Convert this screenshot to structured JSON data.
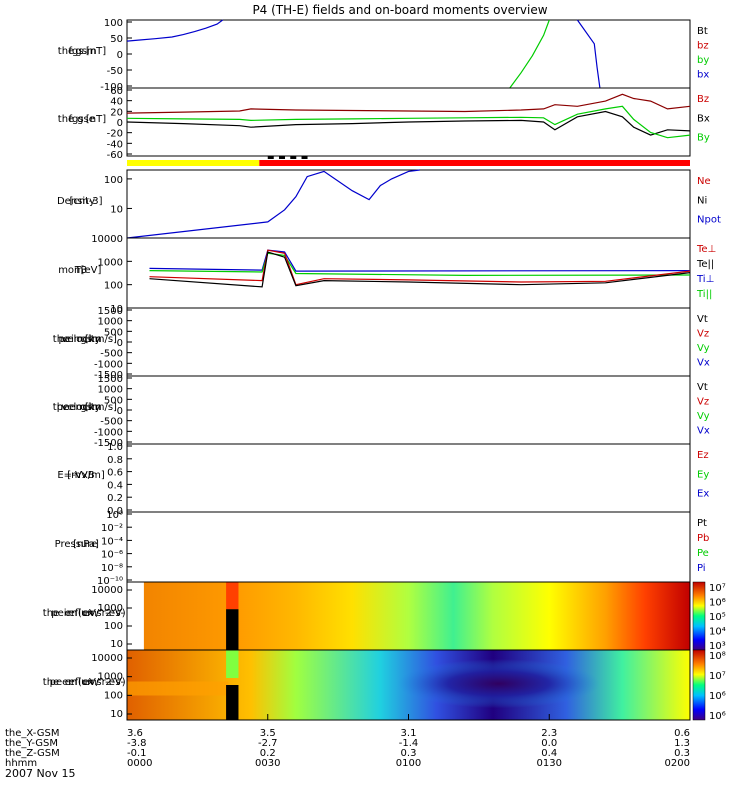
{
  "title": "P4 (TH-E) fields and on-board moments overview",
  "date_label": "2007 Nov 15",
  "colors": {
    "axis": "#000000",
    "blue": "#0000cc",
    "red": "#cc0000",
    "green": "#00cc00",
    "black": "#000000",
    "dark_red": "#8b0000",
    "mode_yellow": "#ffff00",
    "mode_red": "#ff0000"
  },
  "chart_data": [
    {
      "id": "fgs-gsm",
      "type": "line",
      "ylabel": [
        "the",
        "fgs",
        "gsm",
        "[nT]"
      ],
      "ylim": [
        -100,
        100
      ],
      "yticks": [
        "100",
        "50",
        "0",
        "-50",
        "-100"
      ],
      "legend": [
        {
          "label": "Bt",
          "color": "#000000"
        },
        {
          "label": "bz",
          "color": "#cc0000"
        },
        {
          "label": "by",
          "color": "#00cc00"
        },
        {
          "label": "bx",
          "color": "#0000cc"
        }
      ],
      "series": [
        {
          "name": "bx",
          "color": "#0000cc",
          "x": [
            0,
            0.02,
            0.05,
            0.08,
            0.1,
            0.12,
            0.14,
            0.16,
            0.17,
            0.5,
            0.8,
            0.83,
            0.835,
            0.84
          ],
          "y": [
            38,
            41,
            45,
            50,
            57,
            66,
            76,
            88,
            100,
            null,
            100,
            30,
            -40,
            -100
          ]
        },
        {
          "name": "by",
          "color": "#00cc00",
          "x": [
            0.68,
            0.7,
            0.72,
            0.74,
            0.75
          ],
          "y": [
            -100,
            -55,
            -5,
            55,
            100
          ]
        }
      ]
    },
    {
      "id": "fgs-gse",
      "type": "line",
      "ylabel": [
        "the",
        "fgs",
        "gse",
        "[nT]"
      ],
      "ylim": [
        -70,
        60
      ],
      "yticks": [
        "60",
        "40",
        "20",
        "0",
        "-20",
        "-40",
        "-60"
      ],
      "legend": [
        {
          "label": "Bz",
          "color": "#cc0000"
        },
        {
          "label": "Bx",
          "color": "#000000"
        },
        {
          "label": "By",
          "color": "#00cc00"
        }
      ],
      "series": [
        {
          "name": "Bz",
          "color": "#8b0000",
          "x": [
            0,
            0.1,
            0.2,
            0.22,
            0.3,
            0.4,
            0.5,
            0.6,
            0.7,
            0.74,
            0.76,
            0.8,
            0.85,
            0.88,
            0.9,
            0.93,
            0.96,
            1.0
          ],
          "y": [
            12,
            14,
            16,
            20,
            18,
            17,
            16,
            15,
            18,
            20,
            28,
            25,
            35,
            48,
            40,
            35,
            20,
            25
          ]
        },
        {
          "name": "Bx",
          "color": "#000000",
          "x": [
            0,
            0.1,
            0.2,
            0.22,
            0.3,
            0.4,
            0.5,
            0.6,
            0.7,
            0.74,
            0.76,
            0.8,
            0.85,
            0.88,
            0.9,
            0.93,
            0.96,
            1.0
          ],
          "y": [
            -5,
            -8,
            -12,
            -15,
            -10,
            -8,
            -5,
            -3,
            -2,
            -5,
            -20,
            5,
            15,
            5,
            -15,
            -30,
            -20,
            -22
          ]
        },
        {
          "name": "By",
          "color": "#00cc00",
          "x": [
            0,
            0.1,
            0.2,
            0.22,
            0.3,
            0.4,
            0.5,
            0.6,
            0.7,
            0.74,
            0.76,
            0.8,
            0.85,
            0.88,
            0.9,
            0.93,
            0.96,
            1.0
          ],
          "y": [
            2,
            1,
            0,
            -2,
            0,
            1,
            2,
            3,
            4,
            3,
            -10,
            10,
            20,
            25,
            0,
            -25,
            -35,
            -30
          ]
        }
      ]
    },
    {
      "id": "mode-bar",
      "type": "bar",
      "segments": [
        {
          "from": 0,
          "to": 0.235,
          "color": "#ffff00"
        },
        {
          "from": 0.235,
          "to": 1.0,
          "color": "#ff0000"
        }
      ]
    },
    {
      "id": "density",
      "type": "line",
      "ylabel": [
        "Density",
        "[cm-3]"
      ],
      "log": true,
      "ylim": [
        1,
        200
      ],
      "yticks": [
        "100",
        "10"
      ],
      "ytick_values": [
        100,
        10
      ],
      "legend": [
        {
          "label": "Ne",
          "color": "#cc0000"
        },
        {
          "label": "Ni",
          "color": "#000000"
        },
        {
          "label": "Npot",
          "color": "#0000cc"
        }
      ],
      "series": [
        {
          "name": "Npot",
          "color": "#0000cc",
          "x": [
            0,
            0.25,
            0.28,
            0.3,
            0.32,
            0.35,
            0.4,
            0.43,
            0.45,
            0.47,
            0.5,
            0.52
          ],
          "y": [
            1,
            3.5,
            9,
            25,
            120,
            180,
            40,
            20,
            60,
            100,
            180,
            220
          ]
        }
      ]
    },
    {
      "id": "moments-temp",
      "type": "line",
      "ylabel": [
        "mom",
        "T3",
        "[eV]"
      ],
      "log": true,
      "ylim": [
        10,
        10000
      ],
      "yticks": [
        "10000",
        "1000",
        "100",
        "10"
      ],
      "ytick_values": [
        10000,
        1000,
        100,
        10
      ],
      "legend": [
        {
          "label": "Te⊥",
          "color": "#cc0000"
        },
        {
          "label": "Te||",
          "color": "#000000"
        },
        {
          "label": "Ti⊥",
          "color": "#0000cc"
        },
        {
          "label": "Ti||",
          "color": "#00cc00"
        }
      ],
      "series": [
        {
          "name": "Ti⊥",
          "color": "#0000cc",
          "x": [
            0.04,
            0.24,
            0.25,
            0.28,
            0.3,
            1.0
          ],
          "y": [
            500,
            420,
            3000,
            2500,
            380,
            400
          ]
        },
        {
          "name": "Ti||",
          "color": "#00cc00",
          "x": [
            0.04,
            0.24,
            0.25,
            0.28,
            0.3,
            0.6,
            1.0
          ],
          "y": [
            400,
            350,
            2200,
            1800,
            300,
            250,
            260
          ]
        },
        {
          "name": "Te⊥",
          "color": "#cc0000",
          "x": [
            0.04,
            0.24,
            0.25,
            0.28,
            0.3,
            0.35,
            0.5,
            0.7,
            0.85,
            1.0
          ],
          "y": [
            220,
            150,
            3000,
            2200,
            100,
            180,
            160,
            130,
            140,
            380
          ]
        },
        {
          "name": "Te||",
          "color": "#000000",
          "x": [
            0.04,
            0.24,
            0.25,
            0.28,
            0.3,
            0.35,
            0.5,
            0.7,
            0.85,
            1.0
          ],
          "y": [
            180,
            80,
            2500,
            1500,
            90,
            150,
            130,
            100,
            120,
            330
          ]
        }
      ]
    },
    {
      "id": "peim-velocity",
      "type": "line",
      "ylabel": [
        "the",
        "peim",
        "velocity",
        "gsm",
        "[km/s]"
      ],
      "ylim": [
        -1500,
        1500
      ],
      "yticks": [
        "1500",
        "1000",
        "500",
        "0",
        "-500",
        "-1000",
        "-1500"
      ],
      "legend": [
        {
          "label": "Vt",
          "color": "#000000"
        },
        {
          "label": "Vz",
          "color": "#cc0000"
        },
        {
          "label": "Vy",
          "color": "#00cc00"
        },
        {
          "label": "Vx",
          "color": "#0000cc"
        }
      ],
      "series": []
    },
    {
      "id": "peem-velocity",
      "type": "line",
      "ylabel": [
        "the",
        "peem",
        "velocity",
        "gsm",
        "[km/s]"
      ],
      "ylim": [
        -1500,
        1500
      ],
      "yticks": [
        "1500",
        "1000",
        "500",
        "0",
        "-500",
        "-1000",
        "-1500"
      ],
      "legend": [
        {
          "label": "Vt",
          "color": "#000000"
        },
        {
          "label": "Vz",
          "color": "#cc0000"
        },
        {
          "label": "Vy",
          "color": "#00cc00"
        },
        {
          "label": "Vx",
          "color": "#0000cc"
        }
      ],
      "series": []
    },
    {
      "id": "e-vxb",
      "type": "line",
      "ylabel": [
        "E=-VxB",
        "[mV/m]"
      ],
      "ylim": [
        0,
        1
      ],
      "yticks": [
        "1.0",
        "0.8",
        "0.6",
        "0.4",
        "0.2",
        "0.0"
      ],
      "legend": [
        {
          "label": "Ez",
          "color": "#cc0000"
        },
        {
          "label": "Ey",
          "color": "#00cc00"
        },
        {
          "label": "Ex",
          "color": "#0000cc"
        }
      ],
      "series": []
    },
    {
      "id": "pressure",
      "type": "line",
      "ylabel": [
        "Pressure",
        "[nPa]"
      ],
      "yticks": [
        "10⁰",
        "10⁻²",
        "10⁻⁴",
        "10⁻⁶",
        "10⁻⁸",
        "10⁻¹⁰"
      ],
      "legend": [
        {
          "label": "Pt",
          "color": "#000000"
        },
        {
          "label": "Pb",
          "color": "#cc0000"
        },
        {
          "label": "Pe",
          "color": "#00cc00"
        },
        {
          "label": "Pi",
          "color": "#0000cc"
        }
      ],
      "series": []
    },
    {
      "id": "peir-spectrogram",
      "type": "heatmap",
      "ylabel": [
        "the",
        "peir",
        "en",
        "eflux",
        "eV/",
        "(cm^2-s-",
        "sr-eV)"
      ],
      "yticks": [
        "10000",
        "1000",
        "100",
        "10"
      ],
      "colorbar_ticks": [
        "10⁷",
        "10⁶",
        "10⁵",
        "10⁴",
        "10³"
      ],
      "time_fraction_bands": [
        0.04,
        0.2,
        0.25,
        0.45,
        0.6,
        0.75,
        0.9,
        1.0
      ],
      "band_colors": [
        "#f08000",
        "#ff9400",
        "#ffb200",
        "#ffff00",
        "#00e080",
        "#ffff00",
        "#ff6000",
        "#d00000"
      ]
    },
    {
      "id": "peer-spectrogram",
      "type": "heatmap",
      "ylabel": [
        "the",
        "peer",
        "en",
        "eflux",
        "eV/",
        "(cm^2-s-",
        "sr-eV)"
      ],
      "yticks": [
        "10000",
        "1000",
        "100",
        "10"
      ],
      "colorbar_ticks": [
        "10⁸",
        "10⁷",
        "10⁶",
        "10⁶"
      ],
      "time_fraction_bands": [
        0.0,
        0.2,
        0.25,
        0.4,
        0.5,
        0.7,
        0.85,
        1.0
      ]
    }
  ],
  "x_axis": {
    "row_labels": [
      "the_X-GSM",
      "the_Y-GSM",
      "the_Z-GSM",
      "hhmm"
    ],
    "ticks": [
      {
        "frac": 0.0,
        "values": [
          "3.6",
          "-3.8",
          "-0.1",
          "0000"
        ]
      },
      {
        "frac": 0.25,
        "values": [
          "3.5",
          "-2.7",
          "0.2",
          "0030"
        ]
      },
      {
        "frac": 0.5,
        "values": [
          "3.1",
          "-1.4",
          "0.3",
          "0100"
        ]
      },
      {
        "frac": 0.75,
        "values": [
          "2.3",
          "0.0",
          "0.4",
          "0130"
        ]
      },
      {
        "frac": 1.0,
        "values": [
          "0.6",
          "1.3",
          "0.3",
          "0200"
        ]
      }
    ]
  }
}
